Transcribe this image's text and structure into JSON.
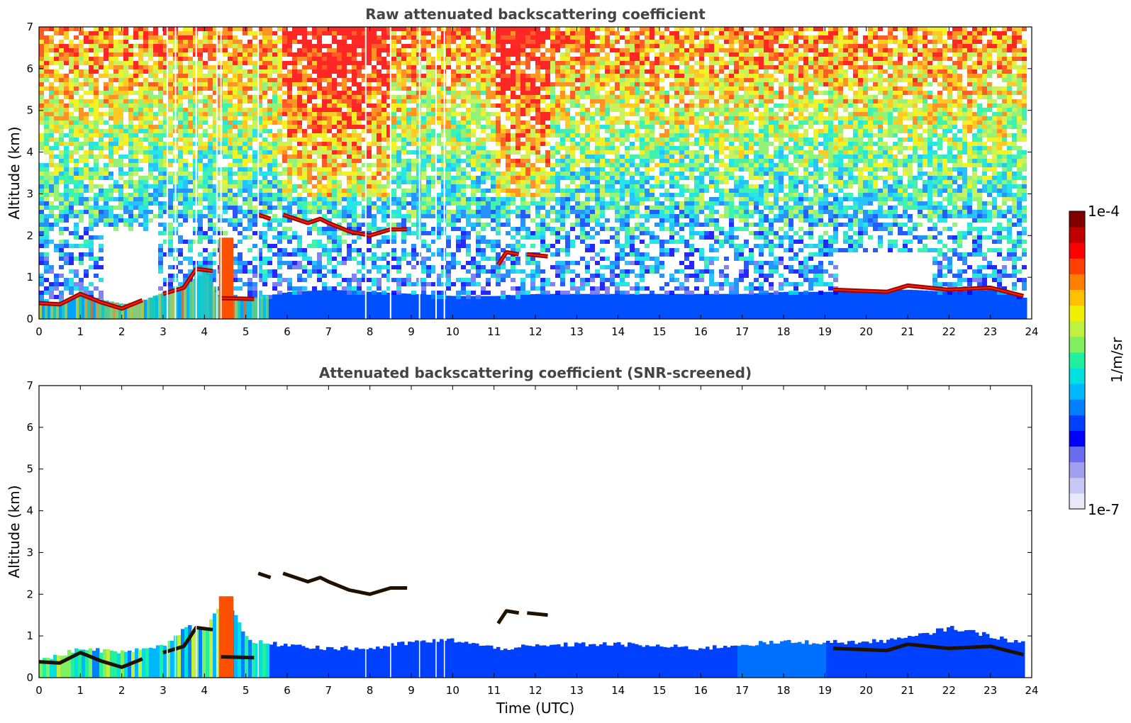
{
  "chart_data": [
    {
      "type": "heatmap",
      "title": "Raw attenuated backscattering coefficient",
      "xlabel": "",
      "ylabel": "Altitude (km)",
      "xlim": [
        0,
        24
      ],
      "ylim": [
        0,
        7
      ],
      "xticks": [
        "0",
        "1",
        "2",
        "3",
        "4",
        "5",
        "6",
        "7",
        "8",
        "9",
        "10",
        "11",
        "12",
        "13",
        "14",
        "15",
        "16",
        "17",
        "18",
        "19",
        "20",
        "21",
        "22",
        "23",
        "24"
      ],
      "yticks": [
        "0",
        "1",
        "2",
        "3",
        "4",
        "5",
        "6",
        "7"
      ],
      "data_end_time": 23.8,
      "boundary_layer_top_km": [
        [
          0,
          0.4
        ],
        [
          0.5,
          0.38
        ],
        [
          1,
          0.6
        ],
        [
          1.5,
          0.45
        ],
        [
          2,
          0.35
        ],
        [
          2.5,
          0.45
        ],
        [
          3,
          0.65
        ],
        [
          3.5,
          0.8
        ],
        [
          4,
          1.15
        ],
        [
          4.3,
          0.55
        ],
        [
          5,
          0.48
        ],
        [
          6,
          0.65
        ],
        [
          7,
          0.7
        ],
        [
          8,
          0.65
        ],
        [
          9,
          0.6
        ],
        [
          10,
          0.55
        ],
        [
          11,
          0.55
        ],
        [
          12,
          0.6
        ],
        [
          13,
          0.6
        ],
        [
          14,
          0.6
        ],
        [
          15,
          0.6
        ],
        [
          16,
          0.6
        ],
        [
          17,
          0.6
        ],
        [
          18,
          0.65
        ],
        [
          19,
          0.65
        ],
        [
          20,
          0.7
        ],
        [
          21,
          0.7
        ],
        [
          22,
          0.65
        ],
        [
          23,
          0.7
        ],
        [
          23.8,
          0.5
        ]
      ],
      "cloud_layers": [
        {
          "t_start": 0.0,
          "t_end": 2.5,
          "alt_km": [
            [
              0,
              0.38
            ],
            [
              0.5,
              0.35
            ],
            [
              1,
              0.6
            ],
            [
              1.5,
              0.4
            ],
            [
              2,
              0.25
            ],
            [
              2.5,
              0.45
            ]
          ]
        },
        {
          "t_start": 3.0,
          "t_end": 4.2,
          "alt_km": [
            [
              3,
              0.6
            ],
            [
              3.5,
              0.75
            ],
            [
              3.8,
              1.2
            ],
            [
              4.2,
              1.15
            ]
          ]
        },
        {
          "t_start": 4.4,
          "t_end": 5.2,
          "alt_km": [
            [
              4.4,
              0.5
            ],
            [
              5.2,
              0.48
            ]
          ]
        },
        {
          "t_start": 5.3,
          "t_end": 5.6,
          "alt_km": [
            [
              5.3,
              2.5
            ],
            [
              5.6,
              2.4
            ]
          ]
        },
        {
          "t_start": 5.9,
          "t_end": 8.9,
          "alt_km": [
            [
              5.9,
              2.5
            ],
            [
              6.5,
              2.3
            ],
            [
              6.8,
              2.4
            ],
            [
              7.0,
              2.3
            ],
            [
              7.5,
              2.1
            ],
            [
              8.0,
              2.0
            ],
            [
              8.5,
              2.15
            ],
            [
              8.9,
              2.15
            ]
          ]
        },
        {
          "t_start": 11.1,
          "t_end": 11.6,
          "alt_km": [
            [
              11.1,
              1.3
            ],
            [
              11.3,
              1.6
            ],
            [
              11.6,
              1.55
            ]
          ]
        },
        {
          "t_start": 11.8,
          "t_end": 12.3,
          "alt_km": [
            [
              11.8,
              1.55
            ],
            [
              12.3,
              1.5
            ]
          ]
        },
        {
          "t_start": 19.2,
          "t_end": 23.8,
          "alt_km": [
            [
              19.2,
              0.7
            ],
            [
              20.5,
              0.65
            ],
            [
              21,
              0.8
            ],
            [
              22,
              0.7
            ],
            [
              23,
              0.75
            ],
            [
              23.8,
              0.55
            ]
          ]
        }
      ]
    },
    {
      "type": "heatmap",
      "title": "Attenuated backscattering coefficient (SNR-screened)",
      "xlabel": "Time (UTC)",
      "ylabel": "Altitude (km)",
      "xlim": [
        0,
        24
      ],
      "ylim": [
        0,
        7
      ],
      "xticks": [
        "0",
        "1",
        "2",
        "3",
        "4",
        "5",
        "6",
        "7",
        "8",
        "9",
        "10",
        "11",
        "12",
        "13",
        "14",
        "15",
        "16",
        "17",
        "18",
        "19",
        "20",
        "21",
        "22",
        "23",
        "24"
      ],
      "yticks": [
        "0",
        "1",
        "2",
        "3",
        "4",
        "5",
        "6",
        "7"
      ],
      "data_end_time": 23.8,
      "signal_top_km": [
        [
          0,
          0.42
        ],
        [
          1,
          0.7
        ],
        [
          2,
          0.6
        ],
        [
          3,
          0.75
        ],
        [
          3.5,
          1.2
        ],
        [
          4,
          1.2
        ],
        [
          4.5,
          1.9
        ],
        [
          5,
          0.9
        ],
        [
          5.5,
          0.8
        ],
        [
          6,
          0.8
        ],
        [
          7,
          0.7
        ],
        [
          8,
          0.7
        ],
        [
          9,
          0.85
        ],
        [
          10,
          0.9
        ],
        [
          11,
          0.7
        ],
        [
          12,
          0.75
        ],
        [
          13,
          0.8
        ],
        [
          14,
          0.8
        ],
        [
          15,
          0.75
        ],
        [
          16,
          0.7
        ],
        [
          17,
          0.8
        ],
        [
          18,
          0.85
        ],
        [
          19,
          0.85
        ],
        [
          20,
          0.85
        ],
        [
          21,
          0.95
        ],
        [
          22,
          1.2
        ],
        [
          23,
          1.0
        ],
        [
          23.8,
          0.8
        ]
      ]
    }
  ],
  "colorbar": {
    "label": "1/m/sr",
    "max_label": "1e-4",
    "min_label": "1e-7",
    "scale": "log",
    "colors": [
      "#e8e8fb",
      "#c8c8f5",
      "#a0a0ee",
      "#6c6cf0",
      "#0000ff",
      "#0040ff",
      "#0080ff",
      "#00b8ff",
      "#00e0e0",
      "#20f0a0",
      "#80f060",
      "#c0f040",
      "#f0f000",
      "#ffc000",
      "#ff8000",
      "#ff4000",
      "#ff0000",
      "#c00000",
      "#800000"
    ]
  }
}
